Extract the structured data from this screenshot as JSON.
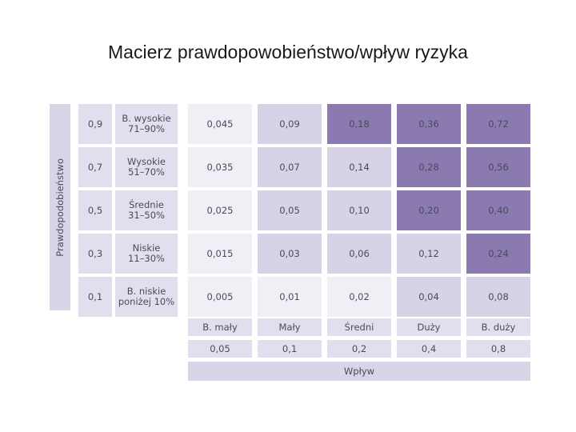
{
  "title": "Macierz prawdopowobieństwo/wpływ ryzyka",
  "probability_axis_label": "Prawdopodobieństwo",
  "impact_axis_label": "Wpływ",
  "rows": [
    {
      "p": "0,9",
      "label": "B. wysokie",
      "range": "71–90%",
      "values": [
        "0,045",
        "0,09",
        "0,18",
        "0,36",
        "0,72"
      ],
      "levels": [
        0,
        1,
        3,
        3,
        3
      ]
    },
    {
      "p": "0,7",
      "label": "Wysokie",
      "range": "51–70%",
      "values": [
        "0,035",
        "0,07",
        "0,14",
        "0,28",
        "0,56"
      ],
      "levels": [
        0,
        1,
        1,
        3,
        3
      ]
    },
    {
      "p": "0,5",
      "label": "Średnie",
      "range": "31–50%",
      "values": [
        "0,025",
        "0,05",
        "0,10",
        "0,20",
        "0,40"
      ],
      "levels": [
        0,
        1,
        1,
        3,
        3
      ]
    },
    {
      "p": "0,3",
      "label": "Niskie",
      "range": "11–30%",
      "values": [
        "0,015",
        "0,03",
        "0,06",
        "0,12",
        "0,24"
      ],
      "levels": [
        0,
        1,
        1,
        1,
        3
      ]
    },
    {
      "p": "0,1",
      "label": "B. niskie",
      "range": "poniżej 10%",
      "values": [
        "0,005",
        "0,01",
        "0,02",
        "0,04",
        "0,08"
      ],
      "levels": [
        0,
        0,
        0,
        1,
        1
      ]
    }
  ],
  "columns": [
    {
      "label": "B. mały",
      "value": "0,05"
    },
    {
      "label": "Mały",
      "value": "0,1"
    },
    {
      "label": "Średni",
      "value": "0,2"
    },
    {
      "label": "Duży",
      "value": "0,4"
    },
    {
      "label": "B. duży",
      "value": "0,8"
    }
  ],
  "colors": {
    "level_0": "#f1eff6",
    "level_1": "#d8d2e6",
    "level_3": "#8a7ab0",
    "label_background": "#e3deee"
  }
}
